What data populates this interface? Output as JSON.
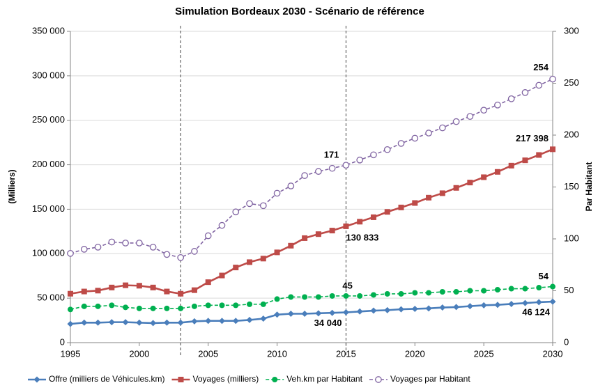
{
  "chart_data": {
    "type": "line",
    "title": "Simulation Bordeaux 2030 - Scénario de référence",
    "y_label": "(Milliers)",
    "y2_label": "Par Habitant",
    "x": [
      1995,
      1996,
      1997,
      1998,
      1999,
      2000,
      2001,
      2002,
      2003,
      2004,
      2005,
      2006,
      2007,
      2008,
      2009,
      2010,
      2011,
      2012,
      2013,
      2014,
      2015,
      2016,
      2017,
      2018,
      2019,
      2020,
      2021,
      2022,
      2023,
      2024,
      2025,
      2026,
      2027,
      2028,
      2029,
      2030
    ],
    "xlim": [
      1995,
      2030
    ],
    "xticks": [
      1995,
      2000,
      2005,
      2010,
      2015,
      2020,
      2025,
      2030
    ],
    "ylim": [
      0,
      350000
    ],
    "yticks": [
      {
        "value": 0,
        "label": "0"
      },
      {
        "value": 50000,
        "label": "50 000"
      },
      {
        "value": 100000,
        "label": "100 000"
      },
      {
        "value": 150000,
        "label": "150 000"
      },
      {
        "value": 200000,
        "label": "200 000"
      },
      {
        "value": 250000,
        "label": "250 000"
      },
      {
        "value": 300000,
        "label": "300 000"
      },
      {
        "value": 350000,
        "label": "350 000"
      }
    ],
    "y2lim": [
      0,
      300
    ],
    "y2ticks": [
      0,
      50,
      100,
      150,
      200,
      250,
      300
    ],
    "grid": true,
    "legend": "bottom",
    "reference_lines": [
      2003,
      2015
    ],
    "series": [
      {
        "name": "Offre (milliers de Véhicules.km)",
        "color": "#4a7ebb",
        "label_color": "#0070c0",
        "marker": "diamond",
        "line_style": "solid",
        "axis": "y",
        "values": [
          21000,
          22500,
          22500,
          23000,
          23000,
          22500,
          22000,
          22500,
          22500,
          24000,
          24500,
          24500,
          24500,
          25500,
          27000,
          31500,
          32500,
          32500,
          33000,
          33500,
          34040,
          35000,
          36000,
          36500,
          37500,
          38000,
          38500,
          39500,
          40000,
          41000,
          42000,
          42500,
          43500,
          44500,
          45500,
          46124
        ],
        "value_labels": [
          null,
          null,
          null,
          null,
          null,
          null,
          null,
          null,
          null,
          null,
          null,
          null,
          null,
          null,
          null,
          null,
          null,
          null,
          null,
          null,
          "34 040",
          null,
          null,
          null,
          null,
          null,
          null,
          null,
          null,
          null,
          null,
          null,
          null,
          null,
          null,
          "46 124"
        ]
      },
      {
        "name": "Voyages (milliers)",
        "color": "#be4b48",
        "label_color": "#c00000",
        "marker": "square",
        "line_style": "solid",
        "axis": "y",
        "values": [
          55000,
          57500,
          58500,
          62000,
          64500,
          64000,
          62000,
          57500,
          55000,
          59000,
          68000,
          75500,
          84500,
          90500,
          94500,
          101500,
          109000,
          117500,
          122000,
          126000,
          130833,
          136000,
          141000,
          147000,
          152000,
          157000,
          163000,
          168000,
          174000,
          180000,
          186000,
          192000,
          199000,
          205000,
          211000,
          217398
        ],
        "value_labels": [
          null,
          null,
          null,
          null,
          null,
          null,
          null,
          null,
          null,
          null,
          null,
          null,
          null,
          null,
          null,
          null,
          null,
          null,
          null,
          null,
          "130 833",
          null,
          null,
          null,
          null,
          null,
          null,
          null,
          null,
          null,
          null,
          null,
          null,
          null,
          null,
          "217 398"
        ]
      },
      {
        "name": "Veh.km par Habitant",
        "color": "#00b050",
        "label_color": "#00b050",
        "marker": "circle",
        "line_style": "dashed",
        "axis": "y2",
        "values": [
          32,
          35,
          35,
          36,
          34,
          33,
          33,
          33,
          33,
          35,
          36,
          36,
          36,
          37,
          37,
          42,
          44,
          44,
          44,
          45,
          45,
          45,
          46,
          47,
          47,
          48,
          48,
          49,
          49,
          50,
          50,
          51,
          52,
          52,
          53,
          54
        ],
        "value_labels": [
          null,
          null,
          null,
          null,
          null,
          null,
          null,
          null,
          null,
          null,
          null,
          null,
          null,
          null,
          null,
          null,
          null,
          null,
          null,
          null,
          "45",
          null,
          null,
          null,
          null,
          null,
          null,
          null,
          null,
          null,
          null,
          null,
          null,
          null,
          null,
          "54"
        ]
      },
      {
        "name": "Voyages par Habitant",
        "color": "#8064a2",
        "label_color": "#7030a0",
        "marker": "hollow-circle",
        "line_style": "dashed",
        "axis": "y2",
        "values": [
          86,
          90,
          92,
          97,
          96,
          96,
          92,
          85,
          82,
          88,
          103,
          113,
          126,
          134,
          132,
          144,
          151,
          161,
          165,
          168,
          171,
          176,
          181,
          186,
          192,
          197,
          202,
          207,
          213,
          218,
          224,
          229,
          235,
          241,
          248,
          254
        ],
        "value_labels": [
          null,
          null,
          null,
          null,
          null,
          null,
          null,
          null,
          null,
          null,
          null,
          null,
          null,
          null,
          null,
          null,
          null,
          null,
          null,
          null,
          "171",
          null,
          null,
          null,
          null,
          null,
          null,
          null,
          null,
          null,
          null,
          null,
          null,
          null,
          null,
          "254"
        ]
      }
    ]
  }
}
